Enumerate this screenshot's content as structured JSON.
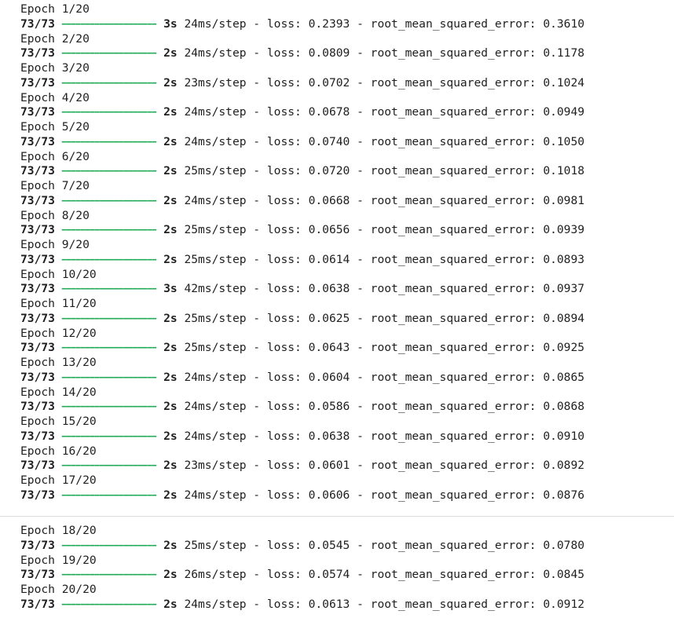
{
  "progress_bar": "━━━━━━━━━━━━━━━━━━━━",
  "colors": {
    "bar": "#1faa56",
    "text": "#1f1f1f"
  },
  "epochs": [
    {
      "epoch": "Epoch 1/20",
      "steps": "73/73",
      "time": "3s",
      "per_step": "24ms/step",
      "loss": "0.2393",
      "rmse": "0.3610"
    },
    {
      "epoch": "Epoch 2/20",
      "steps": "73/73",
      "time": "2s",
      "per_step": "24ms/step",
      "loss": "0.0809",
      "rmse": "0.1178"
    },
    {
      "epoch": "Epoch 3/20",
      "steps": "73/73",
      "time": "2s",
      "per_step": "23ms/step",
      "loss": "0.0702",
      "rmse": "0.1024"
    },
    {
      "epoch": "Epoch 4/20",
      "steps": "73/73",
      "time": "2s",
      "per_step": "24ms/step",
      "loss": "0.0678",
      "rmse": "0.0949"
    },
    {
      "epoch": "Epoch 5/20",
      "steps": "73/73",
      "time": "2s",
      "per_step": "24ms/step",
      "loss": "0.0740",
      "rmse": "0.1050"
    },
    {
      "epoch": "Epoch 6/20",
      "steps": "73/73",
      "time": "2s",
      "per_step": "25ms/step",
      "loss": "0.0720",
      "rmse": "0.1018"
    },
    {
      "epoch": "Epoch 7/20",
      "steps": "73/73",
      "time": "2s",
      "per_step": "24ms/step",
      "loss": "0.0668",
      "rmse": "0.0981"
    },
    {
      "epoch": "Epoch 8/20",
      "steps": "73/73",
      "time": "2s",
      "per_step": "25ms/step",
      "loss": "0.0656",
      "rmse": "0.0939"
    },
    {
      "epoch": "Epoch 9/20",
      "steps": "73/73",
      "time": "2s",
      "per_step": "25ms/step",
      "loss": "0.0614",
      "rmse": "0.0893"
    },
    {
      "epoch": "Epoch 10/20",
      "steps": "73/73",
      "time": "3s",
      "per_step": "42ms/step",
      "loss": "0.0638",
      "rmse": "0.0937"
    },
    {
      "epoch": "Epoch 11/20",
      "steps": "73/73",
      "time": "2s",
      "per_step": "25ms/step",
      "loss": "0.0625",
      "rmse": "0.0894"
    },
    {
      "epoch": "Epoch 12/20",
      "steps": "73/73",
      "time": "2s",
      "per_step": "25ms/step",
      "loss": "0.0643",
      "rmse": "0.0925"
    },
    {
      "epoch": "Epoch 13/20",
      "steps": "73/73",
      "time": "2s",
      "per_step": "24ms/step",
      "loss": "0.0604",
      "rmse": "0.0865"
    },
    {
      "epoch": "Epoch 14/20",
      "steps": "73/73",
      "time": "2s",
      "per_step": "24ms/step",
      "loss": "0.0586",
      "rmse": "0.0868"
    },
    {
      "epoch": "Epoch 15/20",
      "steps": "73/73",
      "time": "2s",
      "per_step": "24ms/step",
      "loss": "0.0638",
      "rmse": "0.0910"
    },
    {
      "epoch": "Epoch 16/20",
      "steps": "73/73",
      "time": "2s",
      "per_step": "23ms/step",
      "loss": "0.0601",
      "rmse": "0.0892"
    },
    {
      "epoch": "Epoch 17/20",
      "steps": "73/73",
      "time": "2s",
      "per_step": "24ms/step",
      "loss": "0.0606",
      "rmse": "0.0876"
    },
    {
      "epoch": "Epoch 18/20",
      "steps": "73/73",
      "time": "2s",
      "per_step": "25ms/step",
      "loss": "0.0545",
      "rmse": "0.0780"
    },
    {
      "epoch": "Epoch 19/20",
      "steps": "73/73",
      "time": "2s",
      "per_step": "26ms/step",
      "loss": "0.0574",
      "rmse": "0.0845"
    },
    {
      "epoch": "Epoch 20/20",
      "steps": "73/73",
      "time": "2s",
      "per_step": "24ms/step",
      "loss": "0.0613",
      "rmse": "0.0912"
    }
  ]
}
